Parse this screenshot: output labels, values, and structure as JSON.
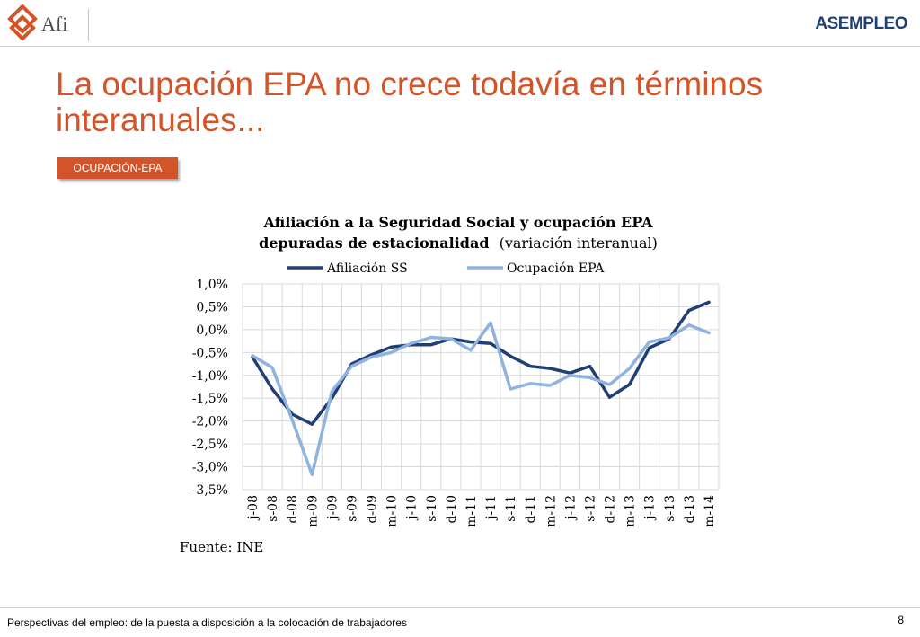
{
  "header": {
    "logo_left_text": "Afi",
    "logo_right_text": "ASEMPLEO"
  },
  "slide": {
    "title": "La ocupación EPA no crece todavía en términos interanuales...",
    "tag": "OCUPACIÓN-EPA",
    "source": "Fuente: INE"
  },
  "footer": {
    "text": "Perspectivas del empleo: de la puesta a disposición a la colocación de trabajadores",
    "page": "8"
  },
  "colors": {
    "accent": "#d4542a",
    "brand_blue": "#1f3f75",
    "series_dark": "#1f3f75",
    "series_light": "#8fb3de"
  },
  "chart_data": {
    "type": "line",
    "title": "Afiliación a la Seguridad Social y ocupación EPA",
    "subtitle_bold": "depuradas de estacionalidad",
    "subtitle_normal": "(variación interanual)",
    "xlabel": "",
    "ylabel": "",
    "ylim": [
      -3.5,
      1.0
    ],
    "yticks": [
      "1,0%",
      "0,5%",
      "0,0%",
      "-0,5%",
      "-1,0%",
      "-1,5%",
      "-2,0%",
      "-2,5%",
      "-3,0%",
      "-3,5%"
    ],
    "ytick_values": [
      1.0,
      0.5,
      0.0,
      -0.5,
      -1.0,
      -1.5,
      -2.0,
      -2.5,
      -3.0,
      -3.5
    ],
    "grid": true,
    "legend_position": "top",
    "categories": [
      "j-08",
      "s-08",
      "d-08",
      "m-09",
      "j-09",
      "s-09",
      "d-09",
      "m-10",
      "j-10",
      "s-10",
      "d-10",
      "m-11",
      "j-11",
      "s-11",
      "d-11",
      "m-12",
      "j-12",
      "s-12",
      "d-12",
      "m-13",
      "j-13",
      "s-13",
      "d-13",
      "m-14"
    ],
    "series": [
      {
        "name": "Afiliación SS",
        "color": "#1f3f75",
        "values": [
          -0.6,
          -1.3,
          -1.85,
          -2.07,
          -1.5,
          -0.75,
          -0.55,
          -0.38,
          -0.33,
          -0.33,
          -0.2,
          -0.27,
          -0.3,
          -0.58,
          -0.8,
          -0.85,
          -0.95,
          -0.8,
          -1.48,
          -1.2,
          -0.4,
          -0.2,
          0.42,
          0.6
        ]
      },
      {
        "name": "Ocupación EPA",
        "color": "#8fb3de",
        "values": [
          -0.57,
          -0.83,
          -1.97,
          -3.17,
          -1.35,
          -0.8,
          -0.6,
          -0.5,
          -0.3,
          -0.17,
          -0.2,
          -0.45,
          0.15,
          -1.3,
          -1.18,
          -1.22,
          -1.0,
          -1.05,
          -1.2,
          -0.85,
          -0.27,
          -0.18,
          0.1,
          -0.07
        ]
      }
    ]
  }
}
